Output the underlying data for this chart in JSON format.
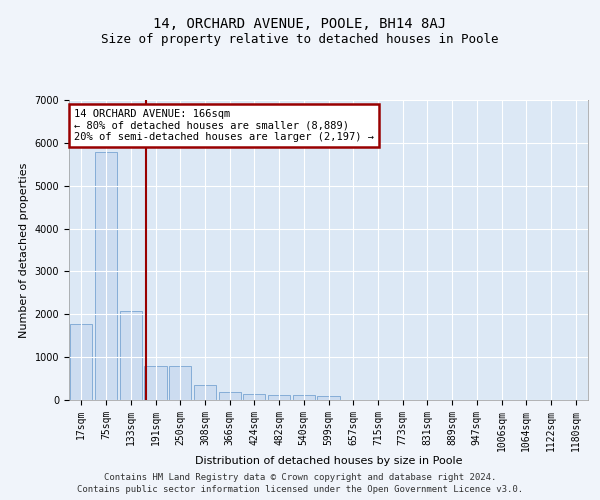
{
  "title1": "14, ORCHARD AVENUE, POOLE, BH14 8AJ",
  "title2": "Size of property relative to detached houses in Poole",
  "xlabel": "Distribution of detached houses by size in Poole",
  "ylabel": "Number of detached properties",
  "categories": [
    "17sqm",
    "75sqm",
    "133sqm",
    "191sqm",
    "250sqm",
    "308sqm",
    "366sqm",
    "424sqm",
    "482sqm",
    "540sqm",
    "599sqm",
    "657sqm",
    "715sqm",
    "773sqm",
    "831sqm",
    "889sqm",
    "947sqm",
    "1006sqm",
    "1064sqm",
    "1122sqm",
    "1180sqm"
  ],
  "bar_values": [
    1780,
    5780,
    2080,
    800,
    790,
    340,
    195,
    130,
    110,
    110,
    95,
    0,
    0,
    0,
    0,
    0,
    0,
    0,
    0,
    0,
    0
  ],
  "bar_color": "#ccdcf0",
  "bar_edge_color": "#6699cc",
  "property_line_x": 2.6,
  "property_line_color": "#990000",
  "annotation_text": "14 ORCHARD AVENUE: 166sqm\n← 80% of detached houses are smaller (8,889)\n20% of semi-detached houses are larger (2,197) →",
  "annotation_box_color": "#990000",
  "ylim": [
    0,
    7000
  ],
  "yticks": [
    0,
    1000,
    2000,
    3000,
    4000,
    5000,
    6000,
    7000
  ],
  "footer1": "Contains HM Land Registry data © Crown copyright and database right 2024.",
  "footer2": "Contains public sector information licensed under the Open Government Licence v3.0.",
  "fig_facecolor": "#f0f4fa",
  "plot_bg_color": "#dce8f5",
  "grid_color": "#ffffff",
  "title1_fontsize": 10,
  "title2_fontsize": 9,
  "axis_label_fontsize": 8,
  "tick_fontsize": 7,
  "annotation_fontsize": 7.5,
  "footer_fontsize": 6.5
}
